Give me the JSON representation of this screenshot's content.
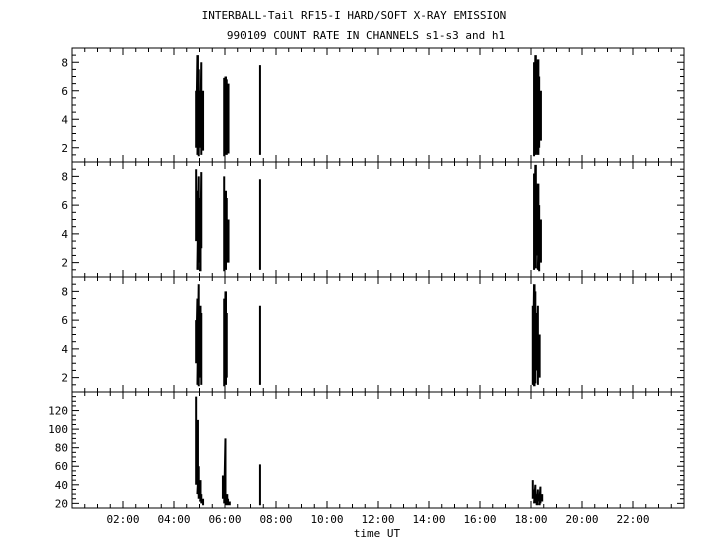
{
  "chart_data": {
    "type": "line",
    "title": "INTERBALL-Tail RF15-I HARD/SOFT X-RAY EMISSION",
    "subtitle": "990109  COUNT RATE IN CHANNELS s1-s3 and h1",
    "xlabel": "time UT",
    "x_range_hours": [
      0,
      24
    ],
    "x_tick_hours": [
      2,
      4,
      6,
      8,
      10,
      12,
      14,
      16,
      18,
      20,
      22
    ],
    "x_tick_labels": [
      "02:00",
      "04:00",
      "06:00",
      "08:00",
      "10:00",
      "12:00",
      "14:00",
      "16:00",
      "18:00",
      "20:00",
      "22:00"
    ],
    "grid": false,
    "panels": [
      {
        "ylim": [
          1,
          9
        ],
        "yticks": [
          2,
          4,
          6,
          8
        ],
        "bursts": [
          {
            "x": [
              4.85,
              4.9,
              4.95,
              5.0,
              5.05,
              5.1
            ],
            "lo": [
              2.0,
              1.5,
              1.4,
              2.0,
              1.5,
              1.8
            ],
            "hi": [
              6.0,
              8.5,
              7.5,
              6.0,
              8.0,
              6.0
            ]
          },
          {
            "x": [
              5.95,
              6.0,
              6.05,
              6.1
            ],
            "lo": [
              1.4,
              1.5,
              1.5,
              1.6
            ],
            "hi": [
              6.9,
              7.0,
              6.8,
              6.5
            ]
          },
          {
            "x": [
              7.35
            ],
            "lo": [
              1.5
            ],
            "hi": [
              7.8
            ]
          },
          {
            "x": [
              18.1,
              18.15,
              18.2,
              18.25,
              18.3,
              18.35
            ],
            "lo": [
              1.4,
              1.5,
              1.6,
              1.5,
              2.0,
              2.5
            ],
            "hi": [
              8.0,
              8.5,
              7.5,
              8.2,
              7.0,
              6.0
            ]
          }
        ]
      },
      {
        "ylim": [
          1,
          9
        ],
        "yticks": [
          2,
          4,
          6,
          8
        ],
        "bursts": [
          {
            "x": [
              4.85,
              4.9,
              4.95,
              5.0,
              5.05
            ],
            "lo": [
              3.5,
              1.5,
              2.0,
              1.4,
              3.0
            ],
            "hi": [
              8.5,
              7.0,
              8.0,
              6.5,
              8.3
            ]
          },
          {
            "x": [
              5.95,
              6.0,
              6.05,
              6.1
            ],
            "lo": [
              1.4,
              1.5,
              2.0,
              2.0
            ],
            "hi": [
              8.0,
              7.0,
              6.5,
              5.0
            ]
          },
          {
            "x": [
              7.35
            ],
            "lo": [
              1.5
            ],
            "hi": [
              7.8
            ]
          },
          {
            "x": [
              18.1,
              18.15,
              18.2,
              18.25,
              18.3,
              18.35
            ],
            "lo": [
              1.5,
              1.6,
              2.5,
              1.5,
              1.4,
              2.0
            ],
            "hi": [
              8.2,
              8.8,
              6.5,
              7.5,
              6.0,
              5.0
            ]
          }
        ]
      },
      {
        "ylim": [
          1,
          9
        ],
        "yticks": [
          2,
          4,
          6,
          8
        ],
        "bursts": [
          {
            "x": [
              4.85,
              4.9,
              4.95,
              5.0,
              5.05
            ],
            "lo": [
              3.0,
              1.5,
              1.4,
              2.0,
              1.5
            ],
            "hi": [
              6.0,
              7.5,
              8.5,
              7.0,
              6.5
            ]
          },
          {
            "x": [
              5.95,
              6.0,
              6.05
            ],
            "lo": [
              1.4,
              1.5,
              2.0
            ],
            "hi": [
              7.5,
              8.0,
              6.5
            ]
          },
          {
            "x": [
              7.35
            ],
            "lo": [
              1.5
            ],
            "hi": [
              7.0
            ]
          },
          {
            "x": [
              18.05,
              18.1,
              18.15,
              18.2,
              18.25,
              18.3
            ],
            "lo": [
              1.5,
              1.4,
              1.6,
              2.5,
              1.5,
              2.0
            ],
            "hi": [
              7.0,
              8.5,
              8.0,
              6.5,
              7.0,
              5.0
            ]
          }
        ]
      },
      {
        "ylim": [
          15,
          140
        ],
        "yticks": [
          20,
          40,
          60,
          80,
          100,
          120
        ],
        "bursts": [
          {
            "x": [
              4.85,
              4.9,
              4.95,
              5.0,
              5.05,
              5.1
            ],
            "lo": [
              40,
              30,
              25,
              22,
              20,
              18
            ],
            "hi": [
              135,
              110,
              60,
              45,
              30,
              25
            ]
          },
          {
            "x": [
              5.9,
              5.95,
              6.0,
              6.05,
              6.1,
              6.15
            ],
            "lo": [
              25,
              20,
              18,
              18,
              18,
              18
            ],
            "hi": [
              50,
              40,
              90,
              30,
              25,
              22
            ]
          },
          {
            "x": [
              7.35
            ],
            "lo": [
              18
            ],
            "hi": [
              62
            ]
          },
          {
            "x": [
              18.05,
              18.1,
              18.15,
              18.2,
              18.25,
              18.3,
              18.35,
              18.4
            ],
            "lo": [
              25,
              20,
              20,
              18,
              22,
              18,
              20,
              22
            ],
            "hi": [
              45,
              35,
              40,
              30,
              35,
              28,
              38,
              30
            ]
          }
        ]
      }
    ]
  }
}
